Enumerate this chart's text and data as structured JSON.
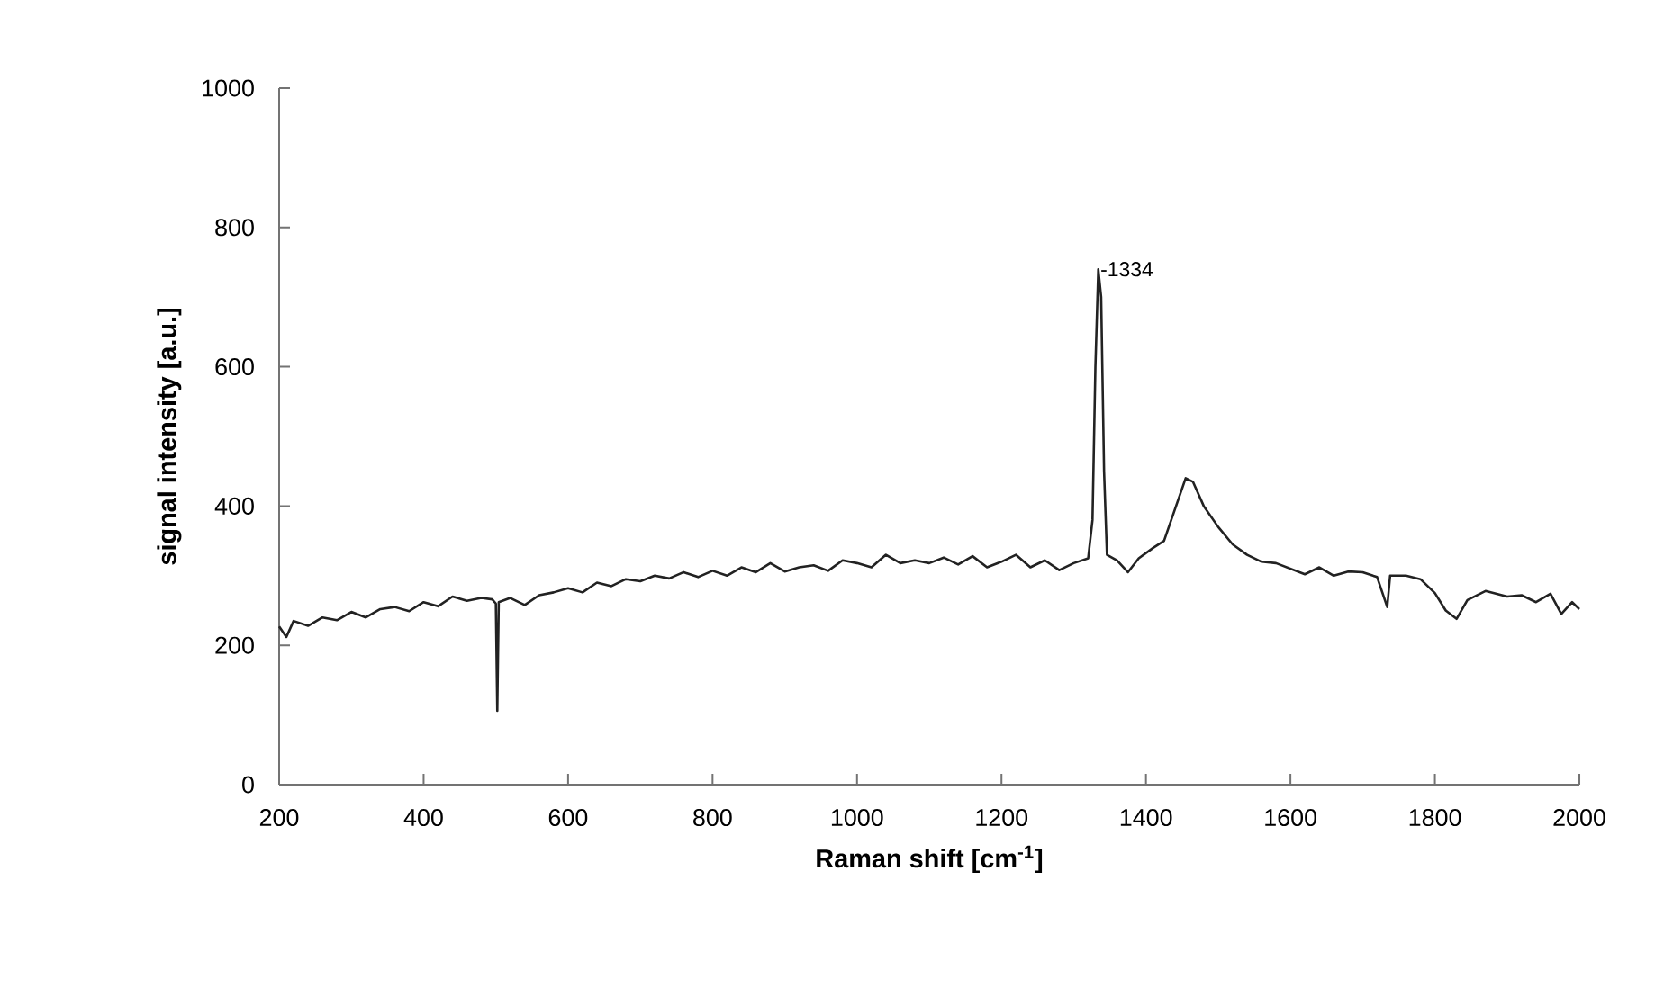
{
  "chart_data": {
    "type": "line",
    "xlabel": "Raman shift [cm$^{-1}$]",
    "ylabel": "signal intensity [a.u.]",
    "xlim": [
      200,
      2000
    ],
    "xticks": [
      200,
      400,
      600,
      800,
      1000,
      1200,
      1400,
      1600,
      1800,
      2000
    ],
    "ylim": [
      0,
      1000
    ],
    "yticks": [
      0,
      200,
      400,
      600,
      800,
      1000
    ],
    "marker": "none",
    "line_style": "solid",
    "annotations": [
      {
        "text": "-1334",
        "x": 1334,
        "y": 740
      }
    ],
    "series": [
      {
        "color": "#222222",
        "x": [
          200,
          210,
          220,
          240,
          260,
          280,
          300,
          320,
          340,
          360,
          380,
          400,
          420,
          440,
          460,
          480,
          495,
          500,
          502,
          504,
          520,
          540,
          560,
          580,
          600,
          620,
          640,
          660,
          680,
          700,
          720,
          740,
          760,
          780,
          800,
          820,
          840,
          860,
          880,
          900,
          920,
          940,
          960,
          980,
          1000,
          1020,
          1040,
          1060,
          1080,
          1100,
          1120,
          1140,
          1160,
          1180,
          1200,
          1220,
          1240,
          1260,
          1280,
          1300,
          1320,
          1326,
          1330,
          1334,
          1338,
          1342,
          1346,
          1360,
          1375,
          1390,
          1410,
          1425,
          1440,
          1455,
          1465,
          1480,
          1500,
          1520,
          1540,
          1560,
          1580,
          1600,
          1620,
          1640,
          1660,
          1680,
          1700,
          1720,
          1734,
          1738,
          1760,
          1780,
          1800,
          1815,
          1830,
          1845,
          1870,
          1900,
          1920,
          1940,
          1960,
          1975,
          1990,
          2000
        ],
        "values": [
          227,
          212,
          235,
          228,
          240,
          236,
          248,
          240,
          252,
          255,
          249,
          262,
          256,
          270,
          264,
          268,
          266,
          260,
          106,
          262,
          268,
          258,
          272,
          276,
          282,
          276,
          290,
          285,
          295,
          292,
          300,
          296,
          305,
          298,
          307,
          300,
          312,
          305,
          318,
          306,
          312,
          315,
          307,
          322,
          318,
          312,
          330,
          318,
          322,
          318,
          326,
          316,
          328,
          312,
          320,
          330,
          312,
          322,
          308,
          318,
          325,
          380,
          600,
          740,
          700,
          450,
          330,
          322,
          305,
          325,
          340,
          350,
          395,
          440,
          435,
          400,
          370,
          345,
          330,
          320,
          318,
          310,
          302,
          312,
          300,
          306,
          305,
          298,
          255,
          300,
          300,
          295,
          275,
          250,
          238,
          265,
          278,
          270,
          272,
          262,
          274,
          245,
          262,
          252
        ]
      }
    ]
  }
}
